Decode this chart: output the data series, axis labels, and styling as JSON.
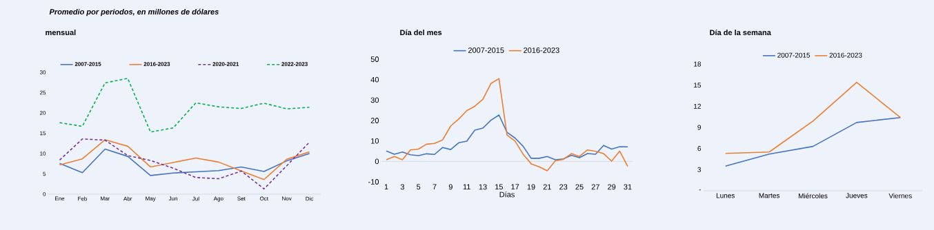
{
  "chart_data": [
    {
      "type": "line",
      "subtitle": "Promedio por periodos, en millones de dólares",
      "title": "mensual",
      "categories": [
        "Ene",
        "Feb",
        "Mar",
        "Abr",
        "May",
        "Jun",
        "Jul",
        "Ago",
        "Set",
        "Oct",
        "Nov",
        "Dic"
      ],
      "ylim": [
        0,
        30
      ],
      "yticks": [
        0,
        5,
        10,
        15,
        20,
        25,
        30
      ],
      "legend": "top",
      "series": [
        {
          "name": "2007-2015",
          "color": "#4472c4",
          "values": [
            7.6,
            5.3,
            11.1,
            9.3,
            4.6,
            5.2,
            5.5,
            5.8,
            6.7,
            5.6,
            8.2,
            10.0
          ]
        },
        {
          "name": "2016-2023",
          "color": "#ed7d31",
          "values": [
            7.2,
            8.7,
            13.4,
            11.8,
            6.7,
            7.8,
            8.9,
            7.9,
            5.7,
            3.6,
            8.6,
            10.4
          ]
        },
        {
          "name": "2020-2021",
          "color": "#7030a0",
          "line_style": "dashed",
          "values": [
            8.4,
            13.6,
            13.3,
            9.5,
            8.3,
            6.4,
            4.1,
            3.8,
            5.7,
            1.3,
            7.0,
            12.8
          ]
        },
        {
          "name": "2022-2023",
          "color": "#00b050",
          "line_style": "dashed",
          "values": [
            17.6,
            16.7,
            27.4,
            28.5,
            15.3,
            16.3,
            22.5,
            21.5,
            21.1,
            22.4,
            21.0,
            21.4
          ]
        }
      ]
    },
    {
      "type": "line",
      "title": "Día del mes",
      "xlabel": "Días",
      "x": [
        1,
        2,
        3,
        4,
        5,
        6,
        7,
        8,
        9,
        10,
        11,
        12,
        13,
        14,
        15,
        16,
        17,
        18,
        19,
        20,
        21,
        22,
        23,
        24,
        25,
        26,
        27,
        28,
        29,
        30,
        31
      ],
      "xlim": [
        0.4,
        31.6
      ],
      "xticks": [
        1,
        3,
        5,
        7,
        9,
        11,
        13,
        15,
        17,
        19,
        21,
        23,
        25,
        27,
        29,
        31
      ],
      "ylim": [
        -10,
        50
      ],
      "yticks": [
        -10,
        0,
        10,
        20,
        30,
        40,
        50
      ],
      "legend": "top",
      "ref_lines": [
        {
          "axis": "y",
          "value": 0,
          "color": "#d0d4dc"
        }
      ],
      "series": [
        {
          "name": "2007-2015",
          "color": "#4472c4",
          "values": [
            5.1,
            3.5,
            4.6,
            3.2,
            2.8,
            3.7,
            3.4,
            6.8,
            5.8,
            9.1,
            9.9,
            15.3,
            16.3,
            20.1,
            22.7,
            14.2,
            11.4,
            7.4,
            1.5,
            1.5,
            2.4,
            0.8,
            1.2,
            3.0,
            1.8,
            3.8,
            3.5,
            7.8,
            6.0,
            7.2,
            7.1
          ]
        },
        {
          "name": "2016-2023",
          "color": "#ed7d31",
          "values": [
            0.8,
            2.4,
            0.8,
            5.6,
            6.0,
            8.4,
            8.8,
            10.5,
            17.3,
            20.7,
            24.8,
            27.0,
            30.4,
            38.1,
            40.5,
            12.9,
            9.9,
            3.5,
            -1.2,
            -2.7,
            -4.6,
            0.3,
            1.0,
            3.8,
            2.4,
            5.6,
            4.9,
            3.8,
            0.1,
            5.0,
            -2.5
          ]
        }
      ]
    },
    {
      "type": "line",
      "title": "Día de la semana",
      "categories": [
        "Lunes",
        "Martes",
        "Miércoles",
        "Jueves",
        "Viernes"
      ],
      "ylim": [
        0,
        18
      ],
      "yticks": [
        {
          "value": 0,
          "label": "-"
        },
        3,
        6,
        9,
        12,
        15,
        18
      ],
      "legend": "top",
      "series": [
        {
          "name": "2007-2015",
          "color": "#4472c4",
          "values": [
            3.5,
            5.2,
            6.3,
            9.7,
            10.4
          ]
        },
        {
          "name": "2016-2023",
          "color": "#ed7d31",
          "values": [
            5.3,
            5.5,
            9.9,
            15.4,
            10.4
          ]
        }
      ]
    }
  ]
}
